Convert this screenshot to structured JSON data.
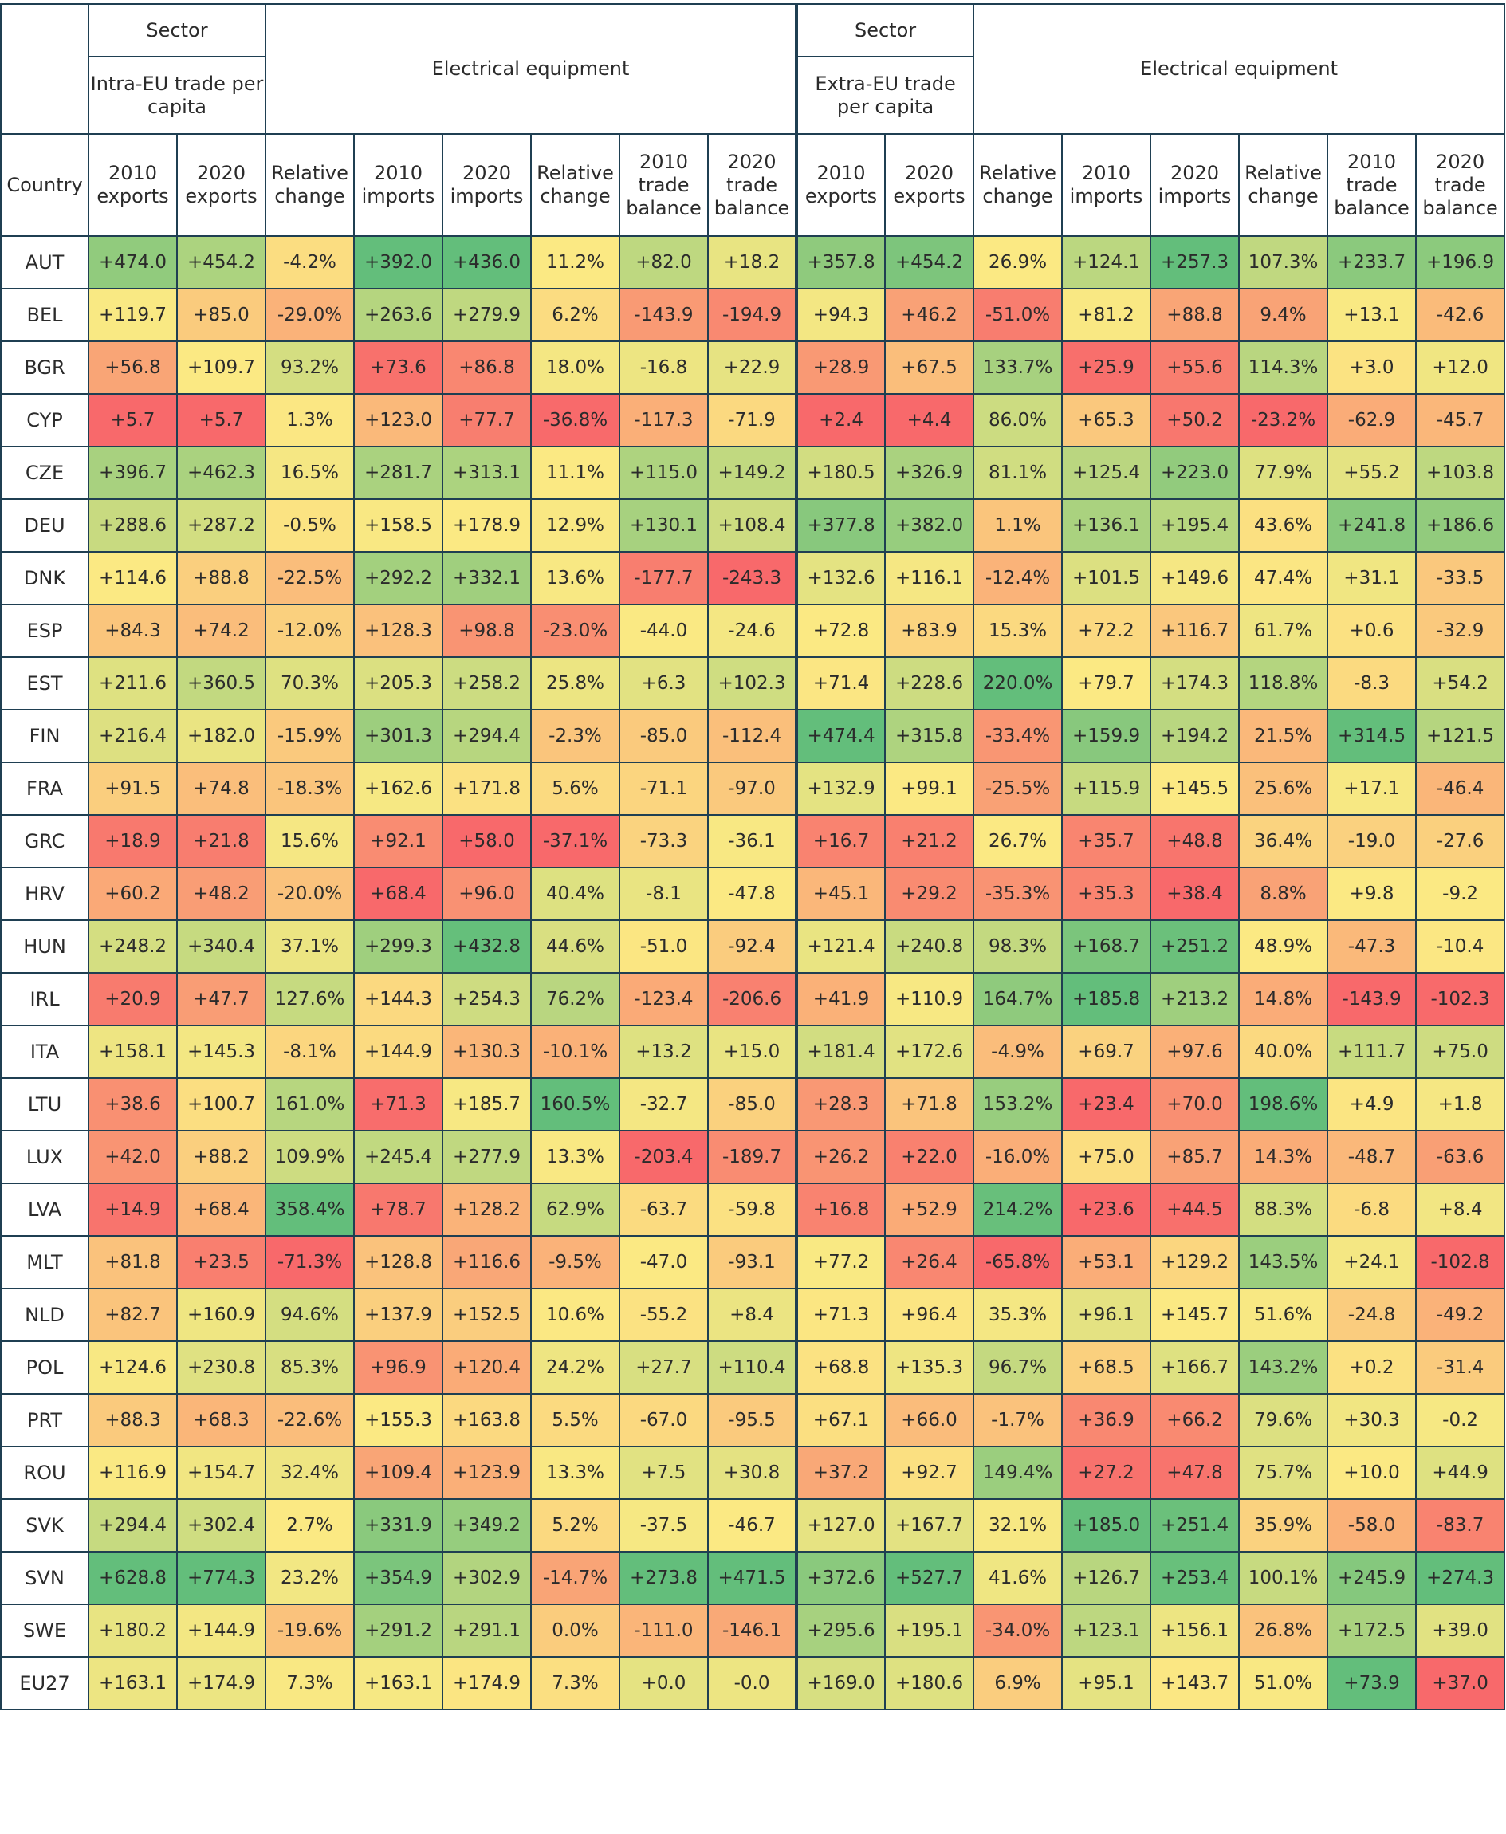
{
  "header": {
    "sector_label": "Sector",
    "intra_label": "Intra-EU trade per capita",
    "extra_label": "Extra-EU trade per capita",
    "equipment_label": "Electrical equipment",
    "country_label": "Country",
    "columns": [
      "2010 exports",
      "2020 exports",
      "Relative change",
      "2010 imports",
      "2020 imports",
      "Relative change",
      "2010 trade balance",
      "2020 trade balance",
      "2010 exports",
      "2020 exports",
      "Relative change",
      "2010 imports",
      "2020 imports",
      "Relative change",
      "2010 trade balance",
      "2020 trade balance"
    ]
  },
  "colors": {
    "red": "#f8696b",
    "yellow": "#fbe983",
    "green": "#63be7b",
    "border": "#1f3f52"
  },
  "chart_data": {
    "type": "table",
    "countries": [
      "AUT",
      "BEL",
      "BGR",
      "CYP",
      "CZE",
      "DEU",
      "DNK",
      "ESP",
      "EST",
      "FIN",
      "FRA",
      "GRC",
      "HRV",
      "HUN",
      "IRL",
      "ITA",
      "LTU",
      "LUX",
      "LVA",
      "MLT",
      "NLD",
      "POL",
      "PRT",
      "ROU",
      "SVK",
      "SVN",
      "SWE",
      "EU27"
    ],
    "rows": [
      [
        "+474.0",
        "+454.2",
        "-4.2%",
        "+392.0",
        "+436.0",
        "11.2%",
        "+82.0",
        "+18.2",
        "+357.8",
        "+454.2",
        "26.9%",
        "+124.1",
        "+257.3",
        "107.3%",
        "+233.7",
        "+196.9"
      ],
      [
        "+119.7",
        "+85.0",
        "-29.0%",
        "+263.6",
        "+279.9",
        "6.2%",
        "-143.9",
        "-194.9",
        "+94.3",
        "+46.2",
        "-51.0%",
        "+81.2",
        "+88.8",
        "9.4%",
        "+13.1",
        "-42.6"
      ],
      [
        "+56.8",
        "+109.7",
        "93.2%",
        "+73.6",
        "+86.8",
        "18.0%",
        "-16.8",
        "+22.9",
        "+28.9",
        "+67.5",
        "133.7%",
        "+25.9",
        "+55.6",
        "114.3%",
        "+3.0",
        "+12.0"
      ],
      [
        "+5.7",
        "+5.7",
        "1.3%",
        "+123.0",
        "+77.7",
        "-36.8%",
        "-117.3",
        "-71.9",
        "+2.4",
        "+4.4",
        "86.0%",
        "+65.3",
        "+50.2",
        "-23.2%",
        "-62.9",
        "-45.7"
      ],
      [
        "+396.7",
        "+462.3",
        "16.5%",
        "+281.7",
        "+313.1",
        "11.1%",
        "+115.0",
        "+149.2",
        "+180.5",
        "+326.9",
        "81.1%",
        "+125.4",
        "+223.0",
        "77.9%",
        "+55.2",
        "+103.8"
      ],
      [
        "+288.6",
        "+287.2",
        "-0.5%",
        "+158.5",
        "+178.9",
        "12.9%",
        "+130.1",
        "+108.4",
        "+377.8",
        "+382.0",
        "1.1%",
        "+136.1",
        "+195.4",
        "43.6%",
        "+241.8",
        "+186.6"
      ],
      [
        "+114.6",
        "+88.8",
        "-22.5%",
        "+292.2",
        "+332.1",
        "13.6%",
        "-177.7",
        "-243.3",
        "+132.6",
        "+116.1",
        "-12.4%",
        "+101.5",
        "+149.6",
        "47.4%",
        "+31.1",
        "-33.5"
      ],
      [
        "+84.3",
        "+74.2",
        "-12.0%",
        "+128.3",
        "+98.8",
        "-23.0%",
        "-44.0",
        "-24.6",
        "+72.8",
        "+83.9",
        "15.3%",
        "+72.2",
        "+116.7",
        "61.7%",
        "+0.6",
        "-32.9"
      ],
      [
        "+211.6",
        "+360.5",
        "70.3%",
        "+205.3",
        "+258.2",
        "25.8%",
        "+6.3",
        "+102.3",
        "+71.4",
        "+228.6",
        "220.0%",
        "+79.7",
        "+174.3",
        "118.8%",
        "-8.3",
        "+54.2"
      ],
      [
        "+216.4",
        "+182.0",
        "-15.9%",
        "+301.3",
        "+294.4",
        "-2.3%",
        "-85.0",
        "-112.4",
        "+474.4",
        "+315.8",
        "-33.4%",
        "+159.9",
        "+194.2",
        "21.5%",
        "+314.5",
        "+121.5"
      ],
      [
        "+91.5",
        "+74.8",
        "-18.3%",
        "+162.6",
        "+171.8",
        "5.6%",
        "-71.1",
        "-97.0",
        "+132.9",
        "+99.1",
        "-25.5%",
        "+115.9",
        "+145.5",
        "25.6%",
        "+17.1",
        "-46.4"
      ],
      [
        "+18.9",
        "+21.8",
        "15.6%",
        "+92.1",
        "+58.0",
        "-37.1%",
        "-73.3",
        "-36.1",
        "+16.7",
        "+21.2",
        "26.7%",
        "+35.7",
        "+48.8",
        "36.4%",
        "-19.0",
        "-27.6"
      ],
      [
        "+60.2",
        "+48.2",
        "-20.0%",
        "+68.4",
        "+96.0",
        "40.4%",
        "-8.1",
        "-47.8",
        "+45.1",
        "+29.2",
        "-35.3%",
        "+35.3",
        "+38.4",
        "8.8%",
        "+9.8",
        "-9.2"
      ],
      [
        "+248.2",
        "+340.4",
        "37.1%",
        "+299.3",
        "+432.8",
        "44.6%",
        "-51.0",
        "-92.4",
        "+121.4",
        "+240.8",
        "98.3%",
        "+168.7",
        "+251.2",
        "48.9%",
        "-47.3",
        "-10.4"
      ],
      [
        "+20.9",
        "+47.7",
        "127.6%",
        "+144.3",
        "+254.3",
        "76.2%",
        "-123.4",
        "-206.6",
        "+41.9",
        "+110.9",
        "164.7%",
        "+185.8",
        "+213.2",
        "14.8%",
        "-143.9",
        "-102.3"
      ],
      [
        "+158.1",
        "+145.3",
        "-8.1%",
        "+144.9",
        "+130.3",
        "-10.1%",
        "+13.2",
        "+15.0",
        "+181.4",
        "+172.6",
        "-4.9%",
        "+69.7",
        "+97.6",
        "40.0%",
        "+111.7",
        "+75.0"
      ],
      [
        "+38.6",
        "+100.7",
        "161.0%",
        "+71.3",
        "+185.7",
        "160.5%",
        "-32.7",
        "-85.0",
        "+28.3",
        "+71.8",
        "153.2%",
        "+23.4",
        "+70.0",
        "198.6%",
        "+4.9",
        "+1.8"
      ],
      [
        "+42.0",
        "+88.2",
        "109.9%",
        "+245.4",
        "+277.9",
        "13.3%",
        "-203.4",
        "-189.7",
        "+26.2",
        "+22.0",
        "-16.0%",
        "+75.0",
        "+85.7",
        "14.3%",
        "-48.7",
        "-63.6"
      ],
      [
        "+14.9",
        "+68.4",
        "358.4%",
        "+78.7",
        "+128.2",
        "62.9%",
        "-63.7",
        "-59.8",
        "+16.8",
        "+52.9",
        "214.2%",
        "+23.6",
        "+44.5",
        "88.3%",
        "-6.8",
        "+8.4"
      ],
      [
        "+81.8",
        "+23.5",
        "-71.3%",
        "+128.8",
        "+116.6",
        "-9.5%",
        "-47.0",
        "-93.1",
        "+77.2",
        "+26.4",
        "-65.8%",
        "+53.1",
        "+129.2",
        "143.5%",
        "+24.1",
        "-102.8"
      ],
      [
        "+82.7",
        "+160.9",
        "94.6%",
        "+137.9",
        "+152.5",
        "10.6%",
        "-55.2",
        "+8.4",
        "+71.3",
        "+96.4",
        "35.3%",
        "+96.1",
        "+145.7",
        "51.6%",
        "-24.8",
        "-49.2"
      ],
      [
        "+124.6",
        "+230.8",
        "85.3%",
        "+96.9",
        "+120.4",
        "24.2%",
        "+27.7",
        "+110.4",
        "+68.8",
        "+135.3",
        "96.7%",
        "+68.5",
        "+166.7",
        "143.2%",
        "+0.2",
        "-31.4"
      ],
      [
        "+88.3",
        "+68.3",
        "-22.6%",
        "+155.3",
        "+163.8",
        "5.5%",
        "-67.0",
        "-95.5",
        "+67.1",
        "+66.0",
        "-1.7%",
        "+36.9",
        "+66.2",
        "79.6%",
        "+30.3",
        "-0.2"
      ],
      [
        "+116.9",
        "+154.7",
        "32.4%",
        "+109.4",
        "+123.9",
        "13.3%",
        "+7.5",
        "+30.8",
        "+37.2",
        "+92.7",
        "149.4%",
        "+27.2",
        "+47.8",
        "75.7%",
        "+10.0",
        "+44.9"
      ],
      [
        "+294.4",
        "+302.4",
        "2.7%",
        "+331.9",
        "+349.2",
        "5.2%",
        "-37.5",
        "-46.7",
        "+127.0",
        "+167.7",
        "32.1%",
        "+185.0",
        "+251.4",
        "35.9%",
        "-58.0",
        "-83.7"
      ],
      [
        "+628.8",
        "+774.3",
        "23.2%",
        "+354.9",
        "+302.9",
        "-14.7%",
        "+273.8",
        "+471.5",
        "+372.6",
        "+527.7",
        "41.6%",
        "+126.7",
        "+253.4",
        "100.1%",
        "+245.9",
        "+274.3"
      ],
      [
        "+180.2",
        "+144.9",
        "-19.6%",
        "+291.2",
        "+291.1",
        "0.0%",
        "-111.0",
        "-146.1",
        "+295.6",
        "+195.1",
        "-34.0%",
        "+123.1",
        "+156.1",
        "26.8%",
        "+172.5",
        "+39.0"
      ],
      [
        "+163.1",
        "+174.9",
        "7.3%",
        "+163.1",
        "+174.9",
        "7.3%",
        "+0.0",
        "-0.0",
        "+169.0",
        "+180.6",
        "6.9%",
        "+95.1",
        "+143.7",
        "51.0%",
        "+73.9",
        "+37.0"
      ]
    ],
    "eu27_cell_colors": {
      "14": "#63be7b",
      "15": "#f8696b"
    }
  }
}
